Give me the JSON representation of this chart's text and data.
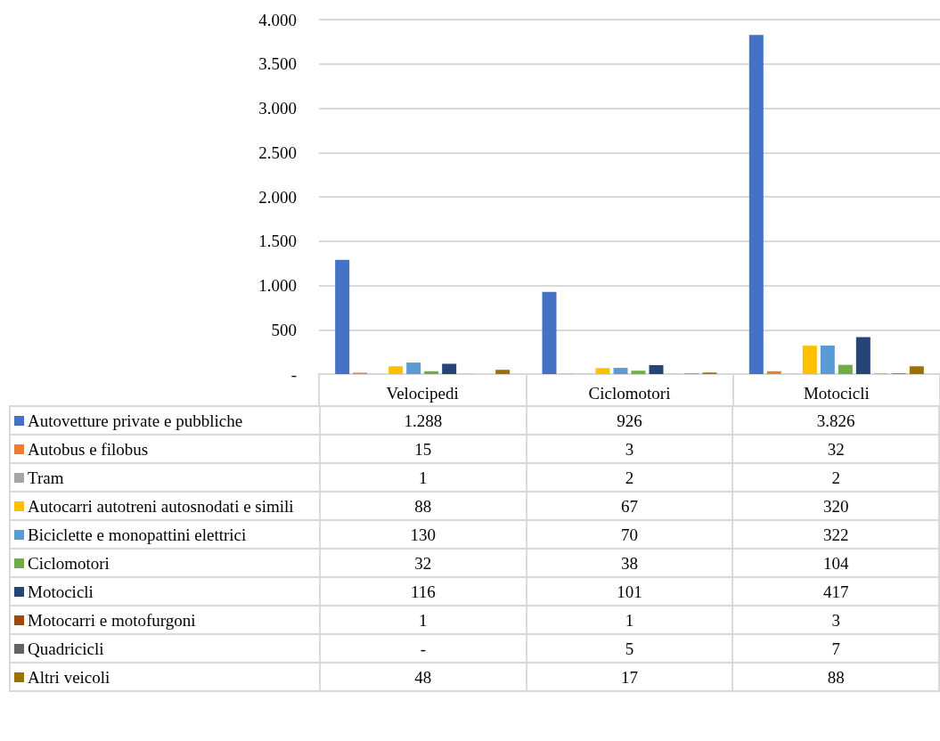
{
  "chart_data": {
    "type": "bar",
    "categories": [
      "Velocipedi",
      "Ciclomotori",
      "Motocicli"
    ],
    "ylim": [
      0,
      4000
    ],
    "yticks": [
      {
        "value": 0,
        "label": "-"
      },
      500,
      {
        "value": 1000,
        "label": "1.000"
      },
      {
        "value": 1500,
        "label": "1.500"
      },
      {
        "value": 2000,
        "label": "2.000"
      },
      {
        "value": 2500,
        "label": "2.500"
      },
      {
        "value": 3000,
        "label": "3.000"
      },
      {
        "value": 3500,
        "label": "3.500"
      },
      {
        "value": 4000,
        "label": "4.000"
      }
    ],
    "grid": "y",
    "legend": "bottom",
    "series": [
      {
        "name": "Autovetture private e pubbliche",
        "color": "#4472c4",
        "values": [
          1288,
          926,
          3826
        ],
        "value_labels": [
          "1.288",
          "926",
          "3.826"
        ]
      },
      {
        "name": "Autobus e filobus",
        "color": "#ed7d31",
        "values": [
          15,
          3,
          32
        ],
        "value_labels": [
          "15",
          "3",
          "32"
        ]
      },
      {
        "name": "Tram",
        "color": "#a5a5a5",
        "values": [
          1,
          2,
          2
        ],
        "value_labels": [
          "1",
          "2",
          "2"
        ]
      },
      {
        "name": "Autocarri autotreni autosnodati e simili",
        "color": "#ffc000",
        "values": [
          88,
          67,
          320
        ],
        "value_labels": [
          "88",
          "67",
          "320"
        ]
      },
      {
        "name": "Biciclette e monopattini elettrici",
        "color": "#5b9bd5",
        "values": [
          130,
          70,
          322
        ],
        "value_labels": [
          "130",
          "70",
          "322"
        ]
      },
      {
        "name": "Ciclomotori",
        "color": "#70ad47",
        "values": [
          32,
          38,
          104
        ],
        "value_labels": [
          "32",
          "38",
          "104"
        ]
      },
      {
        "name": "Motocicli",
        "color": "#264478",
        "values": [
          116,
          101,
          417
        ],
        "value_labels": [
          "116",
          "101",
          "417"
        ]
      },
      {
        "name": "Motocarri e motofurgoni",
        "color": "#9e480e",
        "values": [
          1,
          1,
          3
        ],
        "value_labels": [
          "1",
          "1",
          "3"
        ]
      },
      {
        "name": "Quadricicli",
        "color": "#636363",
        "values": [
          null,
          5,
          7
        ],
        "value_labels": [
          "-",
          "5",
          "7"
        ]
      },
      {
        "name": "Altri veicoli",
        "color": "#997300",
        "values": [
          48,
          17,
          88
        ],
        "value_labels": [
          "48",
          "17",
          "88"
        ]
      }
    ]
  }
}
